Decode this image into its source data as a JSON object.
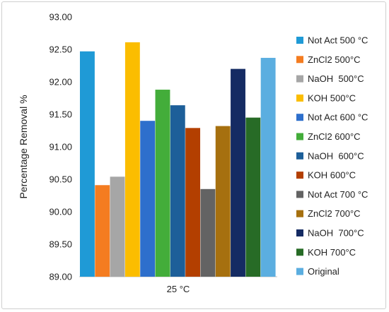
{
  "chart_data": {
    "type": "bar",
    "title": "",
    "xlabel": "",
    "ylabel": "Percentage Removal %",
    "categories": [
      "25 °C"
    ],
    "ylim": [
      89.0,
      93.0
    ],
    "ytick_step": 0.5,
    "yticks": [
      "89.00",
      "89.50",
      "90.00",
      "90.50",
      "91.00",
      "91.50",
      "92.00",
      "92.50",
      "93.00"
    ],
    "grid": false,
    "legend_position": "right",
    "series": [
      {
        "name": "Not Act 500 °C",
        "values": [
          92.47
        ],
        "color": "#1f9ad6"
      },
      {
        "name": "ZnCl2 500°C",
        "values": [
          90.41
        ],
        "color": "#f47c20"
      },
      {
        "name": "NaOH  500°C",
        "values": [
          90.54
        ],
        "color": "#a6a6a6"
      },
      {
        "name": "KOH 500°C",
        "values": [
          92.61
        ],
        "color": "#fbbd00"
      },
      {
        "name": "Not Act 600 °C",
        "values": [
          91.4
        ],
        "color": "#2e6fcc"
      },
      {
        "name": "ZnCl2 600°C",
        "values": [
          91.88
        ],
        "color": "#43ad3a"
      },
      {
        "name": "NaOH  600°C",
        "values": [
          91.64
        ],
        "color": "#1d5f99"
      },
      {
        "name": "KOH 600°C",
        "values": [
          91.29
        ],
        "color": "#b33f00"
      },
      {
        "name": "Not Act 700 °C",
        "values": [
          90.35
        ],
        "color": "#636363"
      },
      {
        "name": "ZnCl2 700°C",
        "values": [
          91.32
        ],
        "color": "#a6700f"
      },
      {
        "name": "NaOH  700°C",
        "values": [
          92.2
        ],
        "color": "#152b63"
      },
      {
        "name": "KOH 700°C",
        "values": [
          91.45
        ],
        "color": "#276b26"
      },
      {
        "name": "Original",
        "values": [
          92.37
        ],
        "color": "#5baee0"
      }
    ]
  }
}
